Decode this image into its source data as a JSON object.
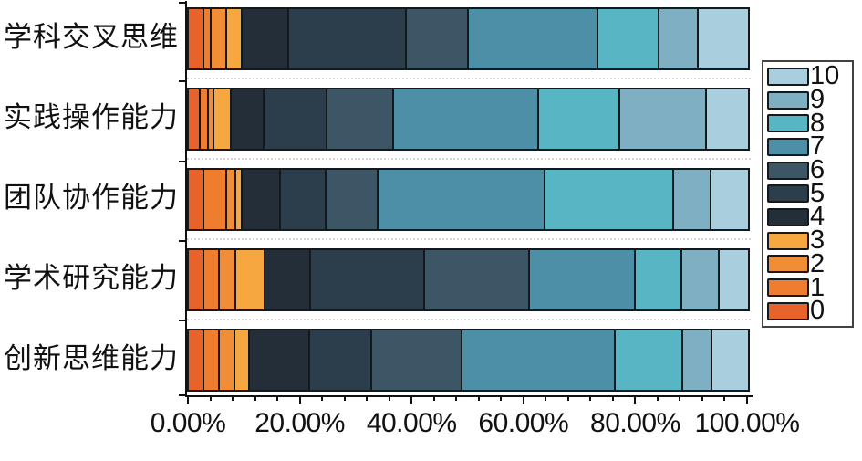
{
  "chart_data": {
    "type": "stacked_bar_horizontal",
    "title": "",
    "unit": "percent of responses",
    "categories": [
      "学科交叉思维",
      "实践操作能力",
      "团队协作能力",
      "学术研究能力",
      "创新思维能力"
    ],
    "series": [
      {
        "name": "0",
        "color": "#E8622C",
        "values": [
          2.4,
          1.8,
          2.4,
          2.4,
          2.4
        ]
      },
      {
        "name": "1",
        "color": "#EF7D30",
        "values": [
          1.4,
          1.4,
          4.2,
          2.9,
          2.8
        ]
      },
      {
        "name": "2",
        "color": "#F08D36",
        "values": [
          2.8,
          1.1,
          1.5,
          2.9,
          2.8
        ]
      },
      {
        "name": "3",
        "color": "#F6A73F",
        "values": [
          2.7,
          3.0,
          1.2,
          5.2,
          2.6
        ]
      },
      {
        "name": "4",
        "color": "#242E39",
        "values": [
          8.3,
          5.9,
          6.9,
          8.1,
          10.8
        ]
      },
      {
        "name": "5",
        "color": "#2C3E4C",
        "values": [
          21.0,
          11.3,
          8.1,
          20.5,
          11.0
        ]
      },
      {
        "name": "6",
        "color": "#3C5666",
        "values": [
          11.2,
          11.9,
          9.3,
          18.7,
          16.3
        ]
      },
      {
        "name": "7",
        "color": "#4D8FA6",
        "values": [
          23.2,
          25.9,
          29.8,
          18.9,
          27.4
        ]
      },
      {
        "name": "8",
        "color": "#58B5C4",
        "values": [
          10.9,
          14.6,
          23.1,
          8.3,
          12.0
        ]
      },
      {
        "name": "9",
        "color": "#7FAFC3",
        "values": [
          6.9,
          15.4,
          6.7,
          6.8,
          5.2
        ]
      },
      {
        "name": "10",
        "color": "#A9CEDD",
        "values": [
          9.2,
          7.7,
          6.8,
          5.3,
          6.7
        ]
      }
    ],
    "legend": {
      "position": "right",
      "order": [
        "10",
        "9",
        "8",
        "7",
        "6",
        "5",
        "4",
        "3",
        "2",
        "1",
        "0"
      ]
    },
    "x_axis": {
      "min": 0,
      "max": 100,
      "major_tick_labels": [
        "0.00%",
        "20.00%",
        "40.00%",
        "60.00%",
        "80.00%",
        "100.00%"
      ],
      "major_tick_percents": [
        0,
        20,
        40,
        60,
        80,
        100
      ],
      "minor_tick_step": 4
    },
    "grid": "dotted horizontal separators between bars"
  }
}
